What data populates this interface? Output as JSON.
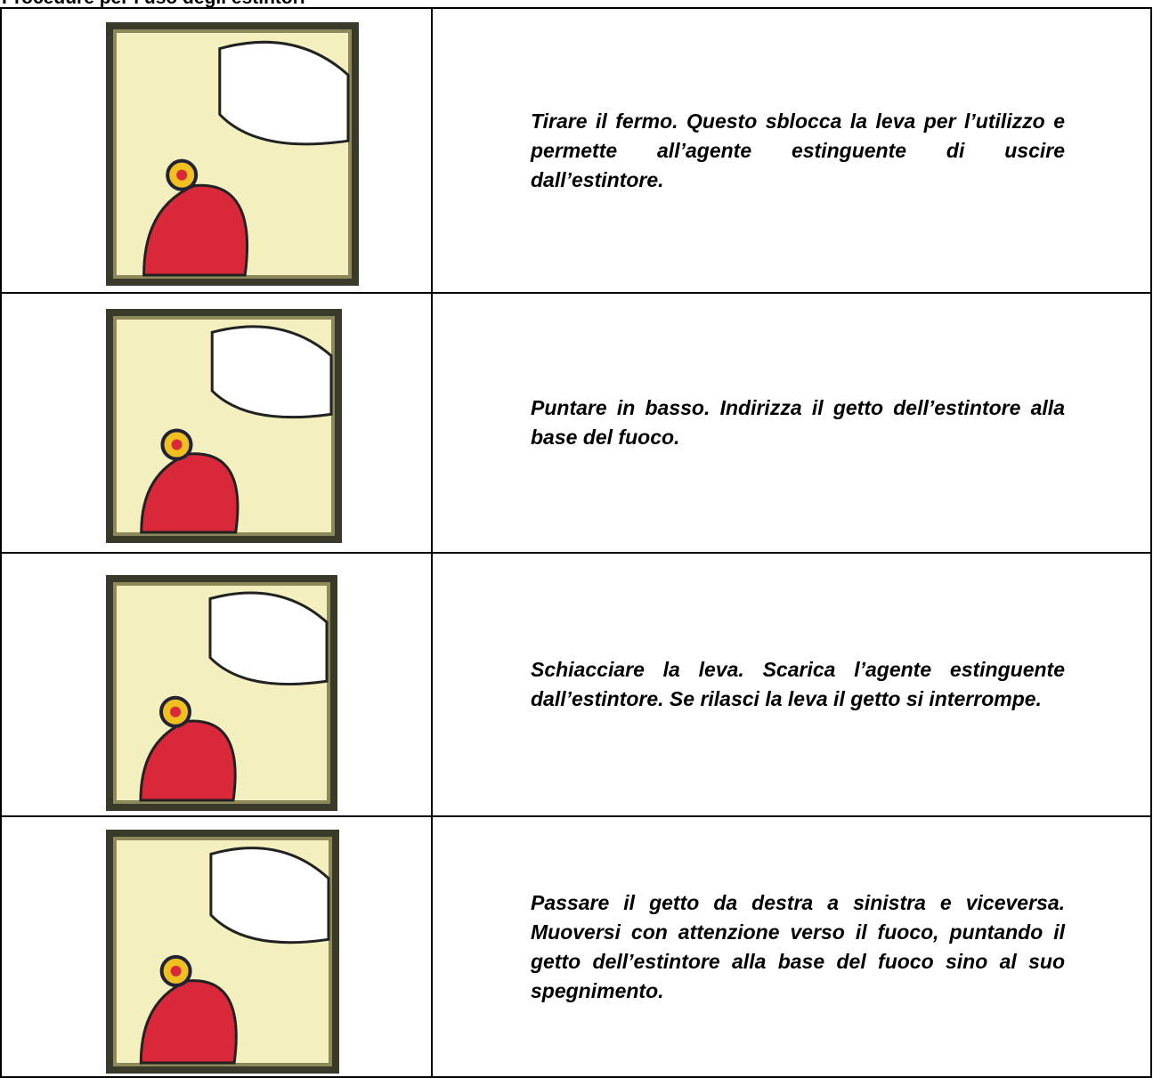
{
  "header": {
    "title": "Procedure per l’uso degli estintori"
  },
  "table": {
    "rows": [
      {
        "text": "Tirare il fermo. Questo sblocca la leva per l’utilizzo e permette all’agente estinguente di uscire dall’estintore."
      },
      {
        "text": "Puntare in basso. Indirizza il getto dell’estintore alla base del fuoco."
      },
      {
        "text": "Schiacciare la leva. Scarica l’agente estinguente dall’estintore. Se rilasci la leva il getto si interrompe."
      },
      {
        "text": "Passare il getto da destra a sinistra e viceversa. Muoversi con attenzione verso il fuoco, puntando il getto dell’estintore alla base del fuoco sino al suo spegnimento."
      }
    ]
  }
}
